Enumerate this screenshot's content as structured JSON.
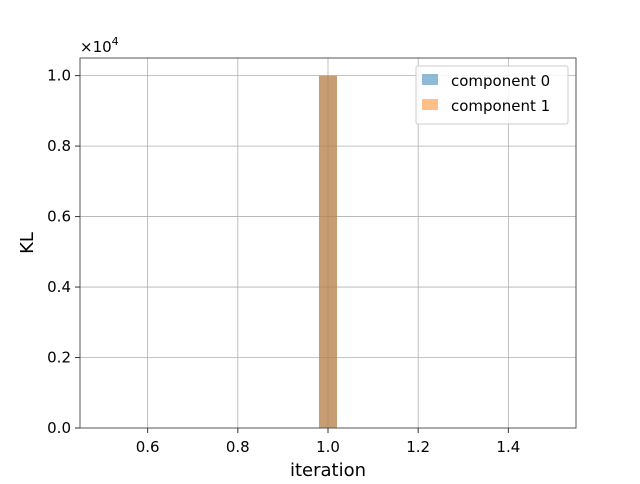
{
  "chart_data": {
    "type": "bar",
    "xlabel": "iteration",
    "ylabel": "KL",
    "y_multiplier_base": "×10",
    "y_multiplier_exp": "4",
    "xlim": [
      0.45,
      1.55
    ],
    "ylim": [
      0,
      1.05
    ],
    "x_ticks": [
      0.6,
      0.8,
      1.0,
      1.2,
      1.4
    ],
    "x_tick_labels": [
      "0.6",
      "0.8",
      "1.0",
      "1.2",
      "1.4"
    ],
    "y_ticks": [
      0.0,
      0.2,
      0.4,
      0.6,
      0.8,
      1.0
    ],
    "y_tick_labels": [
      "0.0",
      "0.2",
      "0.4",
      "0.6",
      "0.8",
      "1.0"
    ],
    "grid": true,
    "legend_position": "top-right",
    "bar_x": 1.0,
    "bar_width": 0.04,
    "series": [
      {
        "name": "component 0",
        "color": "#1f77b4",
        "opacity": 0.5,
        "value": 1.0
      },
      {
        "name": "component 1",
        "color": "#ff7f0e",
        "opacity": 0.5,
        "value": 1.0
      }
    ]
  }
}
